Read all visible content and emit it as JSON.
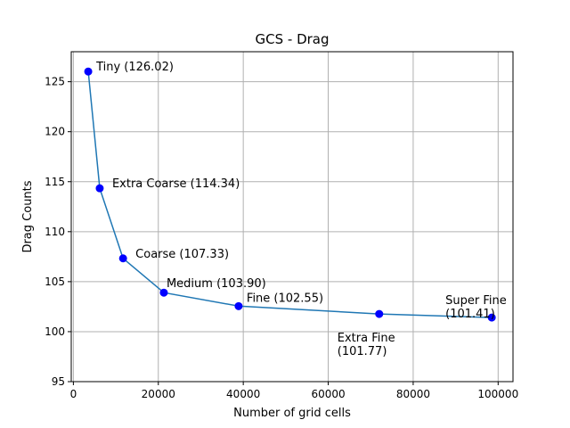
{
  "chart_data": {
    "type": "line",
    "title": "GCS - Drag",
    "xlabel": "Number of grid cells",
    "ylabel": "Drag Counts",
    "xlim": [
      -500,
      103500
    ],
    "ylim": [
      95,
      128
    ],
    "xticks": [
      0,
      20000,
      40000,
      60000,
      80000,
      100000
    ],
    "xtick_labels": [
      "0",
      "20000",
      "40000",
      "60000",
      "80000",
      "100000"
    ],
    "yticks": [
      95,
      100,
      105,
      110,
      115,
      120,
      125
    ],
    "ytick_labels": [
      "95",
      "100",
      "105",
      "110",
      "115",
      "120",
      "125"
    ],
    "grid": true,
    "line_color": "#1f77b4",
    "marker_color": "#0000ff",
    "points": [
      {
        "x": 3500,
        "y": 126.02,
        "label_lines": [
          "Tiny (126.02)"
        ]
      },
      {
        "x": 6200,
        "y": 114.34,
        "label_lines": [
          "Extra Coarse (114.34)"
        ]
      },
      {
        "x": 11700,
        "y": 107.33,
        "label_lines": [
          "Coarse (107.33)"
        ]
      },
      {
        "x": 21300,
        "y": 103.9,
        "label_lines": [
          "Medium (103.90)"
        ]
      },
      {
        "x": 38900,
        "y": 102.55,
        "label_lines": [
          "Fine (102.55)"
        ]
      },
      {
        "x": 72000,
        "y": 101.77,
        "label_lines": [
          "Extra Fine",
          "(101.77)"
        ]
      },
      {
        "x": 98500,
        "y": 101.41,
        "label_lines": [
          "Super Fine",
          "(101.41)"
        ]
      }
    ]
  }
}
